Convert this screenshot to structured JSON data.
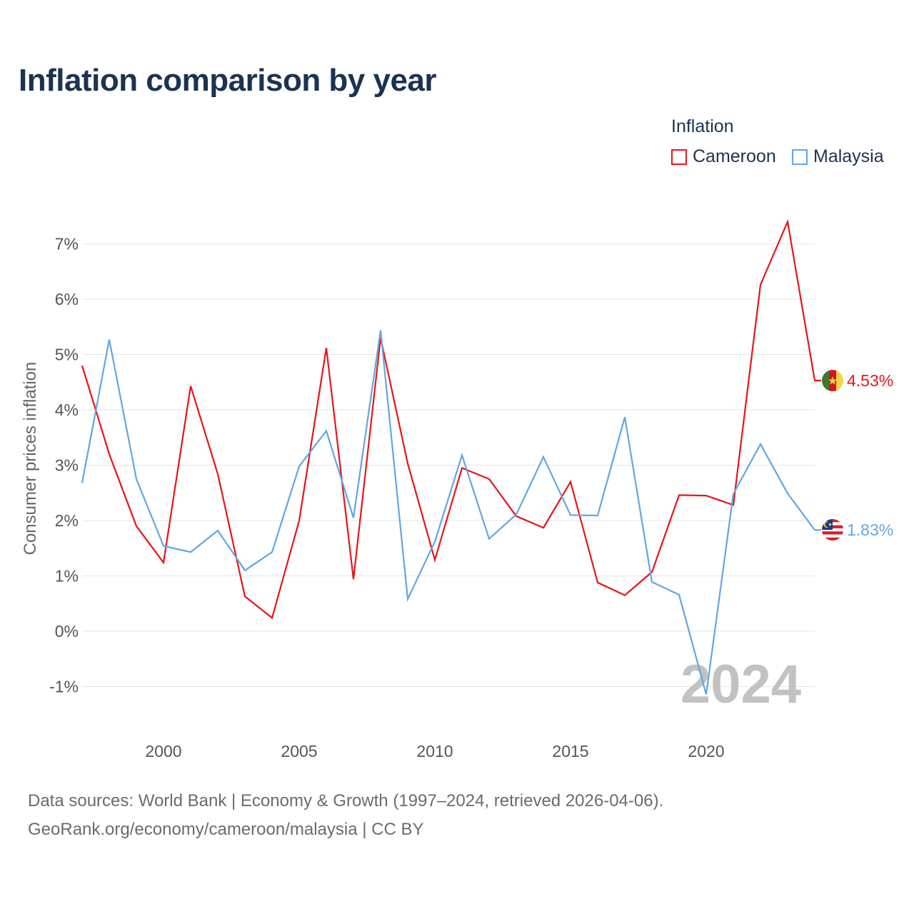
{
  "title": "Inflation comparison by year",
  "legend": {
    "title": "Inflation",
    "items": [
      {
        "name": "Cameroon",
        "color": "#e8141a"
      },
      {
        "name": "Malaysia",
        "color": "#62a6e2"
      }
    ]
  },
  "footer": {
    "line1": "Data sources: World Bank | Economy & Growth (1997–2024, retrieved 2026-04-06).",
    "line2": "GeoRank.org/economy/cameroon/malaysia | CC BY"
  },
  "chart_data": {
    "type": "line",
    "title": "Inflation comparison by year",
    "xlabel": "",
    "ylabel": "Consumer prices inflation",
    "xlim": [
      1997,
      2024
    ],
    "ylim": [
      -1.5,
      7.5
    ],
    "x_ticks": [
      2000,
      2005,
      2010,
      2015,
      2020
    ],
    "y_ticks": [
      -1,
      0,
      1,
      2,
      3,
      4,
      5,
      6,
      7
    ],
    "y_tick_labels": [
      "-1%",
      "0%",
      "1%",
      "2%",
      "3%",
      "4%",
      "5%",
      "6%",
      "7%"
    ],
    "grid": true,
    "highlight_year": "2024",
    "x": [
      1997,
      1998,
      1999,
      2000,
      2001,
      2002,
      2003,
      2004,
      2005,
      2006,
      2007,
      2008,
      2009,
      2010,
      2011,
      2012,
      2013,
      2014,
      2015,
      2016,
      2017,
      2018,
      2019,
      2020,
      2021,
      2022,
      2023,
      2024
    ],
    "series": [
      {
        "name": "Cameroon",
        "color": "#e8141a",
        "end_label": "4.53%",
        "values": [
          4.8,
          3.2,
          1.9,
          1.24,
          4.43,
          2.84,
          0.63,
          0.24,
          2.0,
          5.12,
          0.94,
          5.3,
          3.03,
          1.29,
          2.95,
          2.75,
          2.08,
          1.87,
          2.7,
          0.88,
          0.65,
          1.07,
          2.46,
          2.45,
          2.28,
          6.26,
          7.4,
          4.53
        ]
      },
      {
        "name": "Malaysia",
        "color": "#62a6e2",
        "end_label": "1.83%",
        "values": [
          2.68,
          5.27,
          2.75,
          1.54,
          1.43,
          1.82,
          1.1,
          1.43,
          2.98,
          3.62,
          2.05,
          5.44,
          0.58,
          1.62,
          3.18,
          1.67,
          2.11,
          3.15,
          2.1,
          2.09,
          3.87,
          0.89,
          0.66,
          -1.14,
          2.48,
          3.38,
          2.49,
          1.83
        ]
      }
    ]
  }
}
